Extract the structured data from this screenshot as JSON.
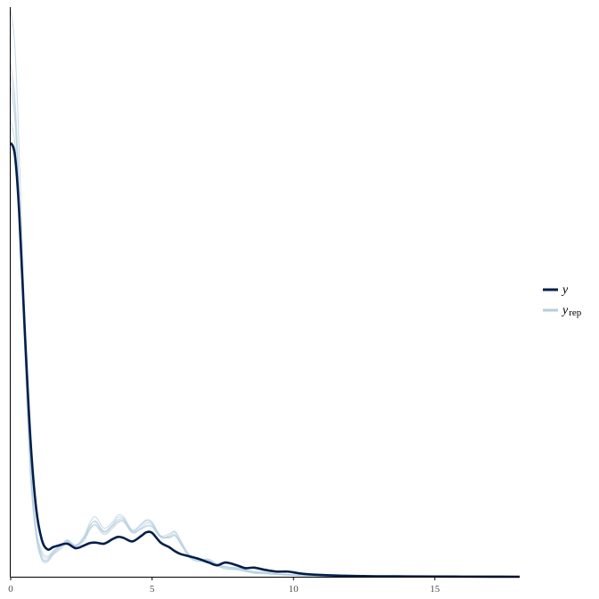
{
  "chart_data": {
    "type": "line",
    "title": "",
    "xlabel": "",
    "ylabel": "",
    "xlim": [
      0,
      18
    ],
    "ylim": [
      0,
      1
    ],
    "x_ticks": [
      "0",
      "5",
      "10",
      "15"
    ],
    "y_ticks_shown": false,
    "grid": false,
    "legend_position": "right",
    "colors": {
      "y": "#011f4b",
      "yrep": "#b3cde0",
      "axis": "#000000",
      "tick_label": "#4d4d4d"
    },
    "series": [
      {
        "name": "y",
        "role": "observed",
        "x": [
          0,
          0.15,
          0.3,
          0.5,
          0.7,
          0.9,
          1.1,
          1.3,
          1.5,
          1.7,
          2.0,
          2.3,
          2.6,
          2.8,
          3.0,
          3.3,
          3.6,
          3.8,
          4.0,
          4.3,
          4.6,
          4.8,
          5.0,
          5.3,
          5.6,
          5.8,
          6.0,
          6.3,
          6.6,
          7.0,
          7.3,
          7.6,
          8.0,
          8.3,
          8.6,
          9.0,
          9.4,
          9.8,
          10.2,
          10.6,
          11.0,
          11.5,
          12.0,
          12.5,
          13.0,
          14.0,
          15.0,
          16.0,
          17.0,
          18.0
        ],
        "y": [
          0.762,
          0.74,
          0.64,
          0.43,
          0.24,
          0.12,
          0.065,
          0.048,
          0.052,
          0.055,
          0.058,
          0.05,
          0.055,
          0.059,
          0.06,
          0.058,
          0.066,
          0.07,
          0.068,
          0.062,
          0.071,
          0.078,
          0.077,
          0.06,
          0.052,
          0.045,
          0.04,
          0.036,
          0.032,
          0.025,
          0.02,
          0.025,
          0.02,
          0.015,
          0.016,
          0.012,
          0.009,
          0.009,
          0.006,
          0.004,
          0.003,
          0.002,
          0.0015,
          0.001,
          0.0008,
          0.0006,
          0.0004,
          0.0002,
          0.0001,
          0
        ]
      },
      {
        "name": "yrep",
        "role": "replicated",
        "draws": [
          {
            "x": [
              0,
              0.15,
              0.3,
              0.5,
              0.7,
              0.9,
              1.1,
              1.3,
              1.5,
              1.8,
              2.0,
              2.3,
              2.6,
              2.8,
              3.0,
              3.3,
              3.6,
              3.8,
              4.0,
              4.3,
              4.6,
              4.8,
              5.0,
              5.3,
              5.6,
              5.8,
              6.0,
              6.3,
              6.6,
              7.0,
              7.3,
              7.6,
              8.0,
              8.3,
              8.6,
              9.0,
              9.4,
              9.8,
              10.2,
              10.6,
              11.0,
              11.5,
              12.0,
              13.0,
              14.0,
              15.0,
              16.0,
              17.0,
              18.0
            ],
            "y": [
              0.995,
              0.93,
              0.75,
              0.45,
              0.2,
              0.08,
              0.035,
              0.03,
              0.042,
              0.055,
              0.065,
              0.055,
              0.072,
              0.095,
              0.105,
              0.085,
              0.096,
              0.108,
              0.105,
              0.082,
              0.092,
              0.1,
              0.096,
              0.072,
              0.068,
              0.072,
              0.058,
              0.038,
              0.03,
              0.03,
              0.022,
              0.017,
              0.016,
              0.012,
              0.009,
              0.008,
              0.005,
              0.004,
              0.003,
              0.002,
              0.0015,
              0.001,
              0.0007,
              0.0004,
              0.0002,
              0.0001,
              5e-05,
              0,
              0
            ]
          },
          {
            "x": [
              0,
              0.15,
              0.3,
              0.5,
              0.7,
              0.9,
              1.1,
              1.3,
              1.5,
              1.8,
              2.0,
              2.3,
              2.6,
              2.8,
              3.0,
              3.3,
              3.6,
              3.8,
              4.0,
              4.3,
              4.6,
              4.8,
              5.0,
              5.3,
              5.6,
              5.8,
              6.0,
              6.3,
              6.6,
              7.0,
              7.3,
              7.6,
              8.0,
              8.3,
              8.6,
              9.0,
              9.4,
              9.8,
              10.2,
              10.6,
              11.0,
              11.5,
              12.0,
              13.0,
              14.0,
              15.0,
              16.0,
              17.0,
              18.0
            ],
            "y": [
              0.86,
              0.8,
              0.66,
              0.4,
              0.18,
              0.075,
              0.032,
              0.028,
              0.04,
              0.053,
              0.062,
              0.053,
              0.068,
              0.088,
              0.098,
              0.08,
              0.09,
              0.1,
              0.1,
              0.078,
              0.086,
              0.094,
              0.092,
              0.07,
              0.072,
              0.078,
              0.062,
              0.036,
              0.028,
              0.028,
              0.02,
              0.014,
              0.013,
              0.01,
              0.007,
              0.006,
              0.004,
              0.003,
              0.002,
              0.0015,
              0.001,
              0.0007,
              0.0005,
              0.0003,
              0.0002,
              0.0001,
              5e-05,
              0,
              0
            ]
          },
          {
            "x": [
              0,
              0.15,
              0.3,
              0.5,
              0.7,
              0.9,
              1.1,
              1.3,
              1.5,
              1.8,
              2.0,
              2.3,
              2.6,
              2.8,
              3.0,
              3.3,
              3.6,
              3.8,
              4.0,
              4.3,
              4.6,
              4.8,
              5.0,
              5.3,
              5.6,
              5.8,
              6.0,
              6.3,
              6.6,
              7.0,
              7.3,
              7.6,
              8.0,
              8.3,
              8.6,
              9.0,
              9.4,
              9.8,
              10.2,
              10.6,
              11.0,
              11.5,
              12.0,
              13.0,
              14.0,
              15.0,
              16.0,
              17.0,
              18.0
            ],
            "y": [
              0.88,
              0.82,
              0.67,
              0.42,
              0.19,
              0.08,
              0.04,
              0.033,
              0.044,
              0.056,
              0.063,
              0.054,
              0.07,
              0.09,
              0.096,
              0.079,
              0.092,
              0.104,
              0.102,
              0.08,
              0.09,
              0.098,
              0.094,
              0.071,
              0.07,
              0.074,
              0.06,
              0.037,
              0.03,
              0.031,
              0.021,
              0.016,
              0.014,
              0.011,
              0.008,
              0.007,
              0.0045,
              0.0035,
              0.0025,
              0.0018,
              0.0012,
              0.0008,
              0.0006,
              0.0003,
              0.0002,
              0.0001,
              5e-05,
              0,
              0
            ]
          },
          {
            "x": [
              0,
              0.15,
              0.3,
              0.5,
              0.7,
              0.9,
              1.1,
              1.3,
              1.5,
              1.8,
              2.0,
              2.3,
              2.6,
              2.8,
              3.0,
              3.3,
              3.6,
              3.8,
              4.0,
              4.3,
              4.6,
              4.8,
              5.0,
              5.3,
              5.6,
              5.8,
              6.0,
              6.3,
              6.6,
              7.0,
              7.3,
              7.6,
              8.0,
              8.3,
              8.6,
              9.0,
              9.4,
              9.8,
              10.2,
              10.6,
              11.0,
              11.5,
              12.0,
              13.0,
              14.0,
              15.0,
              16.0,
              17.0,
              18.0
            ],
            "y": [
              0.9,
              0.84,
              0.68,
              0.41,
              0.2,
              0.085,
              0.045,
              0.036,
              0.045,
              0.057,
              0.064,
              0.056,
              0.066,
              0.085,
              0.092,
              0.077,
              0.088,
              0.097,
              0.098,
              0.079,
              0.084,
              0.09,
              0.089,
              0.072,
              0.075,
              0.08,
              0.065,
              0.04,
              0.031,
              0.029,
              0.022,
              0.018,
              0.015,
              0.012,
              0.009,
              0.007,
              0.005,
              0.004,
              0.003,
              0.002,
              0.0014,
              0.0009,
              0.0006,
              0.0003,
              0.0002,
              0.0001,
              5e-05,
              0,
              0
            ]
          },
          {
            "x": [
              0,
              0.15,
              0.3,
              0.5,
              0.7,
              0.9,
              1.1,
              1.3,
              1.5,
              1.8,
              2.0,
              2.3,
              2.6,
              2.8,
              3.0,
              3.3,
              3.6,
              3.8,
              4.0,
              4.3,
              4.6,
              4.8,
              5.0,
              5.3,
              5.6,
              5.8,
              6.0,
              6.3,
              6.6,
              7.0,
              7.3,
              7.6,
              8.0,
              8.3,
              8.6,
              9.0,
              9.4,
              9.8,
              10.2,
              10.6,
              11.0,
              11.5,
              12.0,
              13.0,
              14.0,
              15.0,
              16.0,
              17.0,
              18.0
            ],
            "y": [
              0.8,
              0.76,
              0.63,
              0.39,
              0.175,
              0.07,
              0.03,
              0.026,
              0.038,
              0.05,
              0.06,
              0.052,
              0.064,
              0.082,
              0.09,
              0.074,
              0.085,
              0.095,
              0.096,
              0.077,
              0.083,
              0.088,
              0.087,
              0.069,
              0.069,
              0.073,
              0.059,
              0.035,
              0.027,
              0.027,
              0.019,
              0.014,
              0.012,
              0.009,
              0.006,
              0.005,
              0.0035,
              0.0025,
              0.0018,
              0.0012,
              0.0008,
              0.0005,
              0.0003,
              0.0002,
              0.0001,
              5e-05,
              0,
              0,
              0
            ]
          }
        ]
      }
    ]
  },
  "legend": {
    "items": [
      {
        "symbol": "y",
        "subscript": "",
        "color": "#011f4b"
      },
      {
        "symbol": "y",
        "subscript": "rep",
        "color": "#b3cde0"
      }
    ]
  }
}
